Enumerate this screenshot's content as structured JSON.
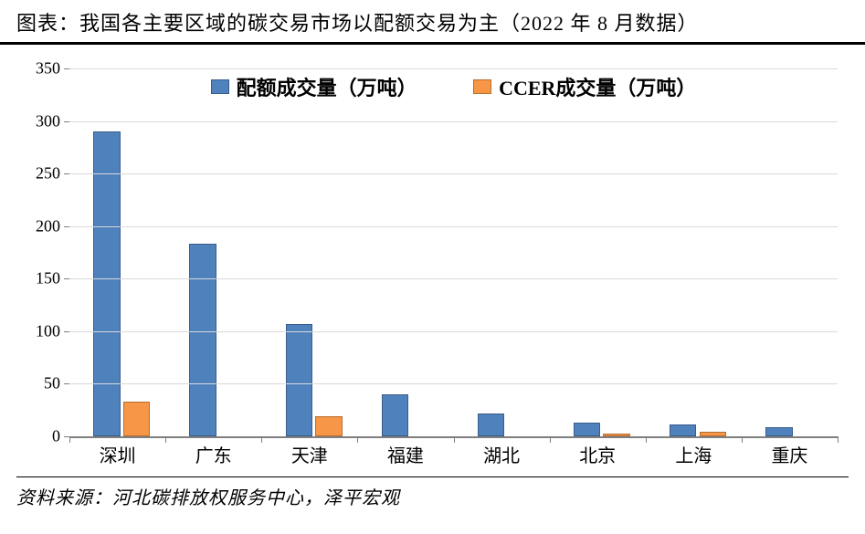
{
  "title": "图表：我国各主要区域的碳交易市场以配额交易为主（2022 年 8 月数据）",
  "source": "资料来源：河北碳排放权服务中心，泽平宏观",
  "chart": {
    "type": "bar",
    "categories": [
      "深圳",
      "广东",
      "天津",
      "福建",
      "湖北",
      "北京",
      "上海",
      "重庆"
    ],
    "series": [
      {
        "key": "quota",
        "label": "配额成交量（万吨）",
        "color": "#4f81bd",
        "border": "#385d8a",
        "values": [
          290,
          183,
          107,
          40,
          22,
          13,
          11,
          9
        ]
      },
      {
        "key": "ccer",
        "label": "CCER成交量（万吨）",
        "color": "#f79646",
        "border": "#b66d31",
        "values": [
          33,
          0,
          19,
          0,
          0,
          3,
          4,
          0
        ]
      }
    ],
    "y": {
      "min": 0,
      "max": 350,
      "step": 50
    },
    "title_fontsize": 22,
    "legend_fontsize": 22,
    "tick_fontsize": 18,
    "xlabel_fontsize": 20,
    "background_color": "#ffffff",
    "grid_color": "#d9d9d9",
    "axis_color": "#7f7f7f"
  }
}
